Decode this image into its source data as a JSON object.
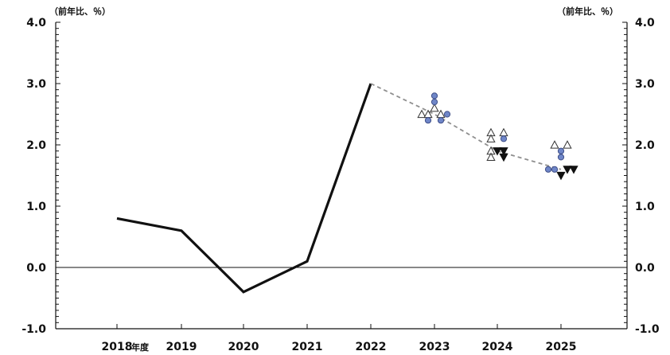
{
  "chart_data": {
    "type": "line",
    "unit_left": "（前年比、％）",
    "unit_right": "（前年比、％）",
    "xlabel": "年度",
    "x_categories": [
      "2018",
      "2019",
      "2020",
      "2021",
      "2022",
      "2023",
      "2024",
      "2025"
    ],
    "y_ticks_left": [
      "4.0",
      "3.0",
      "2.0",
      "1.0",
      "0.0",
      "-1.0"
    ],
    "y_ticks_right": [
      "4.0",
      "3.0",
      "2.0",
      "1.0",
      "0.0",
      "-1.0"
    ],
    "ylim": [
      -1.0,
      4.0
    ],
    "grid": false,
    "colors": {
      "actual_line": "#111111",
      "median_line": "#8f8f8f",
      "circle_fill": "#6f86c8",
      "circle_stroke": "#3f4f88",
      "triangle_up_stroke": "#333333",
      "triangle_down_fill": "#111111"
    },
    "series": [
      {
        "kind": "actual",
        "x": [
          "2018",
          "2019",
          "2020",
          "2021",
          "2022"
        ],
        "values": [
          0.8,
          0.6,
          -0.4,
          0.1,
          3.0
        ]
      },
      {
        "kind": "median",
        "x": [
          "2022",
          "2023",
          "2024",
          "2025"
        ],
        "values": [
          3.0,
          2.5,
          1.9,
          1.6
        ]
      },
      {
        "kind": "circle",
        "points": [
          {
            "x": "2023",
            "offset": 0,
            "y": 2.8
          },
          {
            "x": "2023",
            "offset": 0,
            "y": 2.7
          },
          {
            "x": "2023",
            "offset": -1,
            "y": 2.4
          },
          {
            "x": "2023",
            "offset": 1,
            "y": 2.4
          },
          {
            "x": "2023",
            "offset": 2,
            "y": 2.5
          },
          {
            "x": "2024",
            "offset": 1,
            "y": 2.1
          },
          {
            "x": "2025",
            "offset": 0,
            "y": 1.9
          },
          {
            "x": "2025",
            "offset": 0,
            "y": 1.8
          },
          {
            "x": "2025",
            "offset": -2,
            "y": 1.6
          },
          {
            "x": "2025",
            "offset": -1,
            "y": 1.6
          }
        ]
      },
      {
        "kind": "triangle_up",
        "points": [
          {
            "x": "2023",
            "offset": 0,
            "y": 2.6
          },
          {
            "x": "2023",
            "offset": -2,
            "y": 2.5
          },
          {
            "x": "2023",
            "offset": -1,
            "y": 2.5
          },
          {
            "x": "2023",
            "offset": 1,
            "y": 2.5
          },
          {
            "x": "2024",
            "offset": -1,
            "y": 2.2
          },
          {
            "x": "2024",
            "offset": 1,
            "y": 2.2
          },
          {
            "x": "2024",
            "offset": -1,
            "y": 2.1
          },
          {
            "x": "2024",
            "offset": -1,
            "y": 1.9
          },
          {
            "x": "2024",
            "offset": -1,
            "y": 1.8
          },
          {
            "x": "2025",
            "offset": -1,
            "y": 2.0
          },
          {
            "x": "2025",
            "offset": 1,
            "y": 2.0
          }
        ]
      },
      {
        "kind": "triangle_down",
        "points": [
          {
            "x": "2024",
            "offset": 0,
            "y": 1.9
          },
          {
            "x": "2024",
            "offset": 1,
            "y": 1.9
          },
          {
            "x": "2024",
            "offset": 1,
            "y": 1.8
          },
          {
            "x": "2025",
            "offset": 0,
            "y": 1.5
          },
          {
            "x": "2025",
            "offset": 1,
            "y": 1.6
          },
          {
            "x": "2025",
            "offset": 2,
            "y": 1.6
          }
        ]
      }
    ]
  }
}
